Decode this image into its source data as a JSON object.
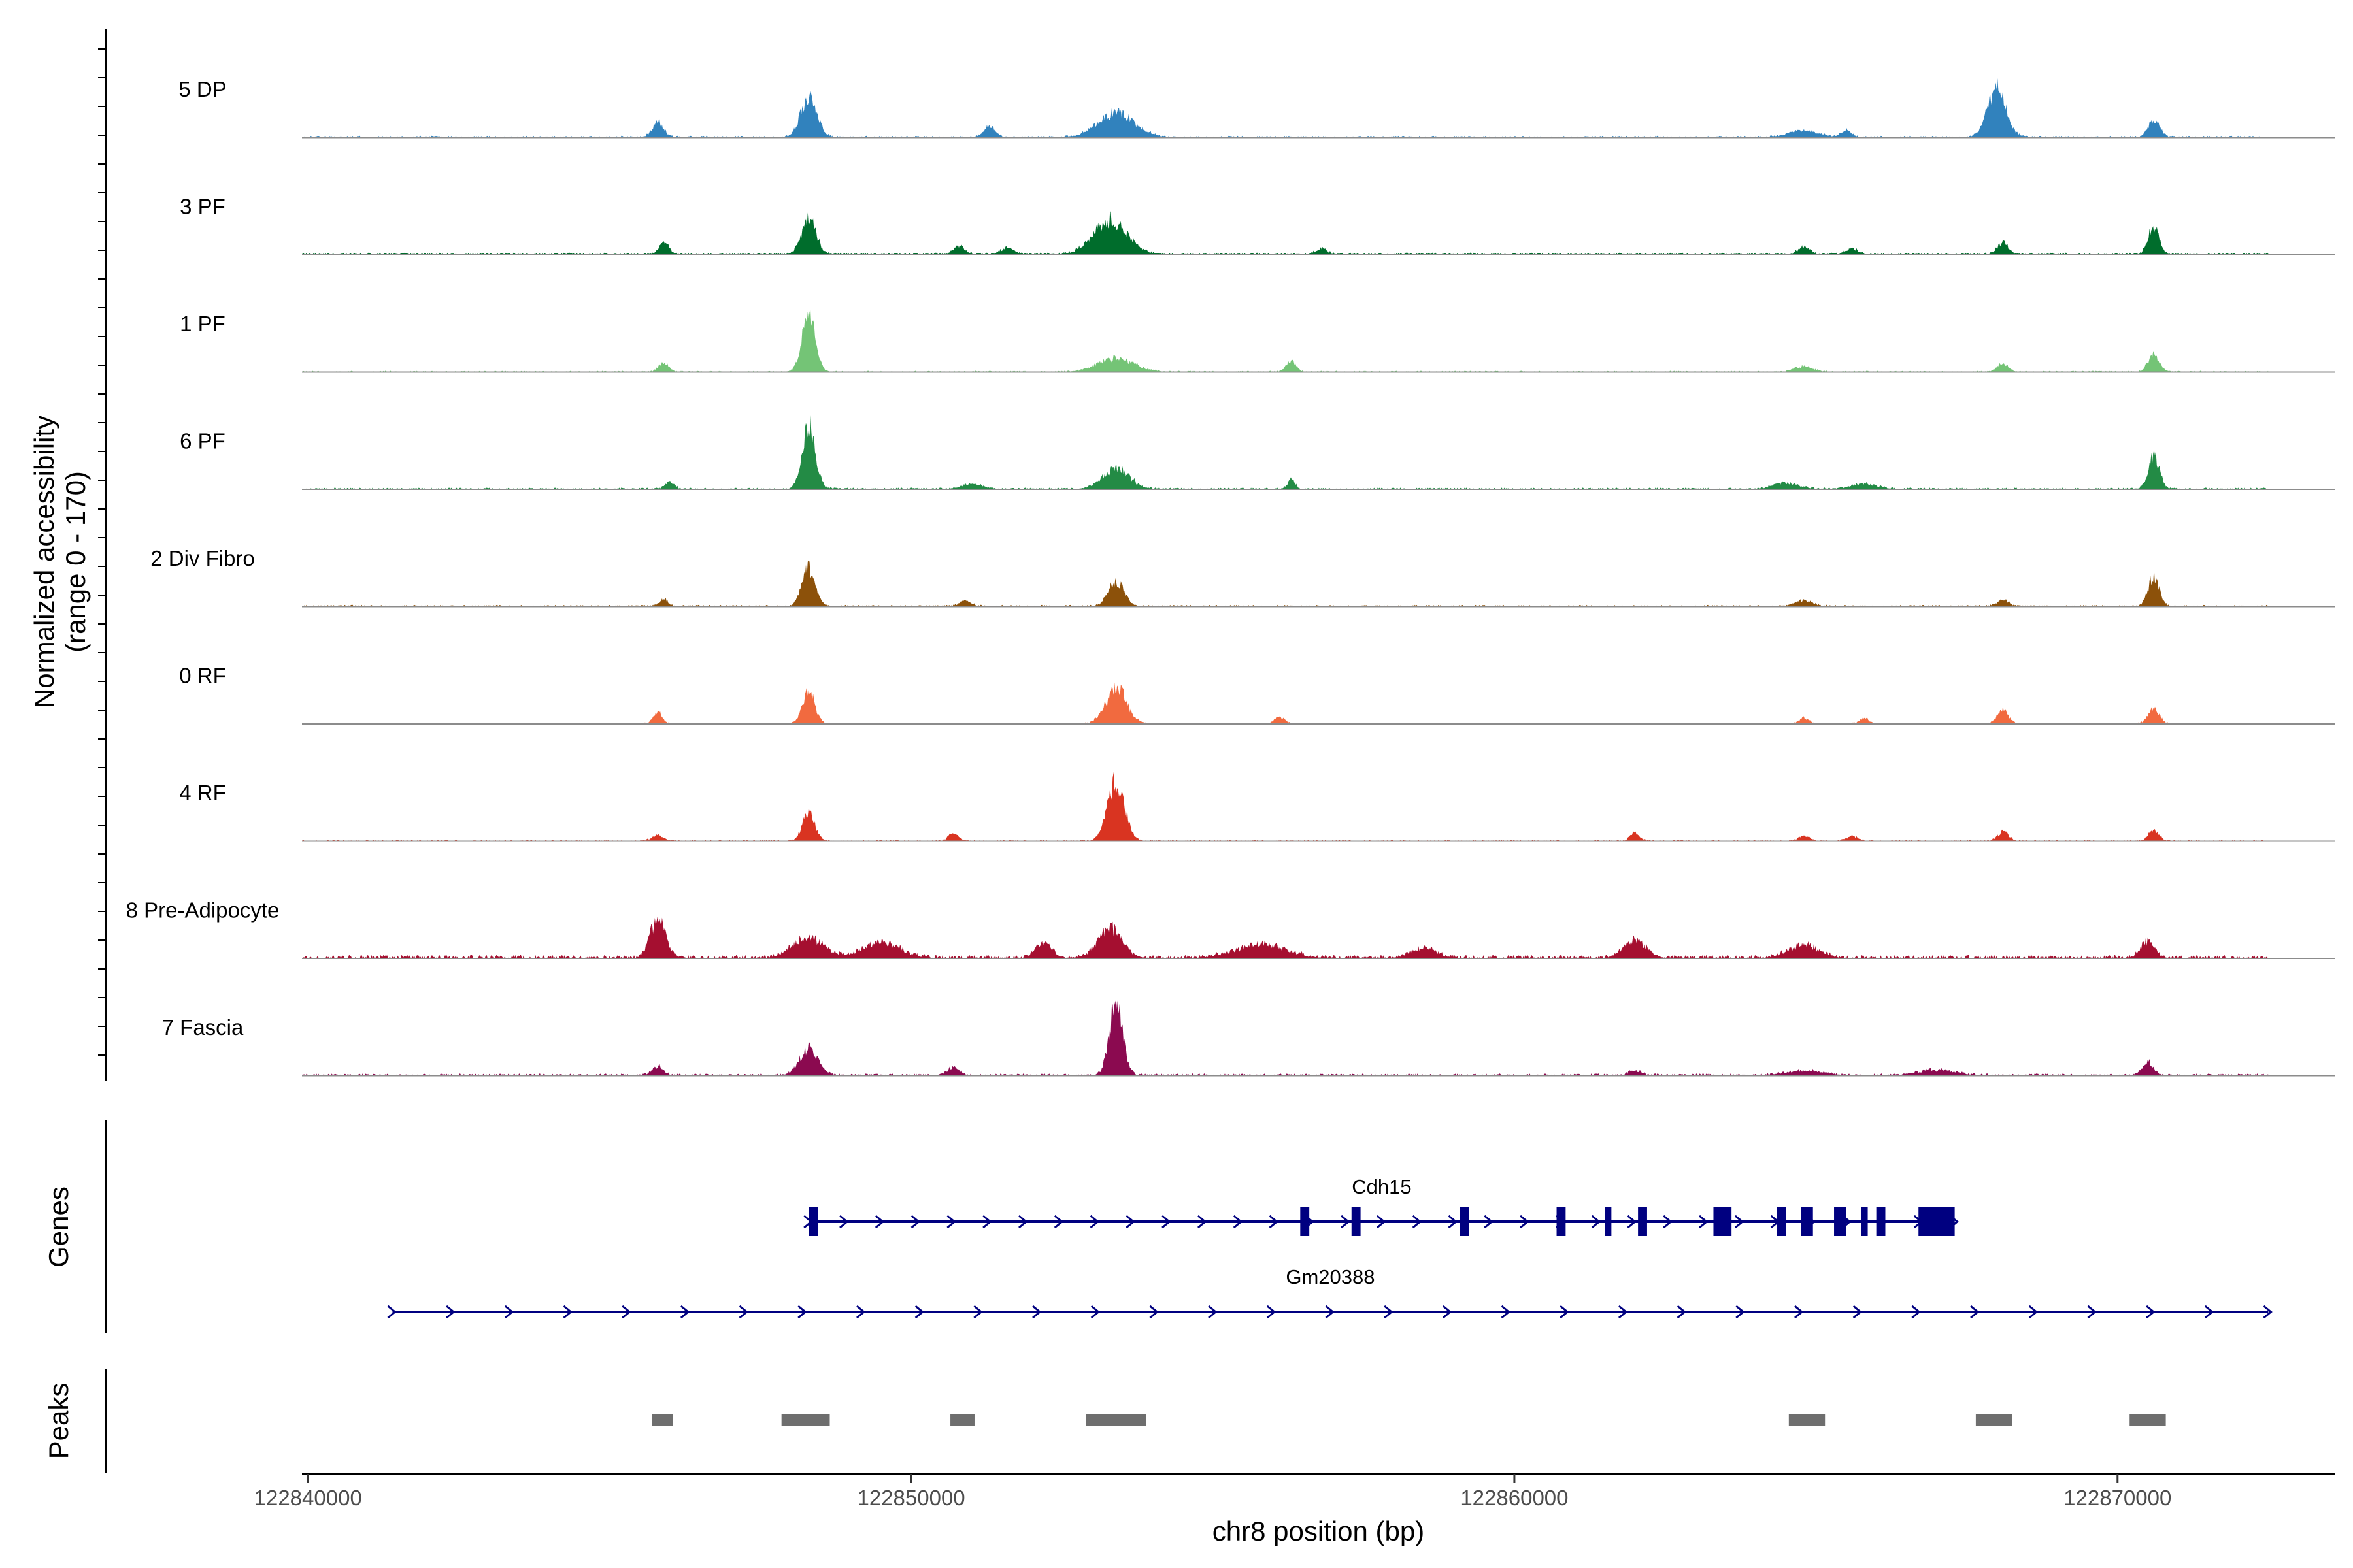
{
  "chart_data": {
    "type": "area",
    "title": "",
    "ylabel_line1": "Normalized accessibility",
    "ylabel_line2": "(range 0 - 170)",
    "ylim": [
      0,
      170
    ],
    "xlabel": "chr8 position (bp)",
    "xlim": [
      122839900,
      122873600
    ],
    "x_ticks": [
      122840000,
      122850000,
      122860000,
      122870000
    ],
    "x_tick_labels": [
      "122840000",
      "122850000",
      "122860000",
      "122870000"
    ],
    "region_start": 122839900,
    "region_end": 122872500,
    "tracks": [
      {
        "name": "5 DP",
        "color": "#3182BD",
        "noise": 4,
        "peaks": [
          [
            122845800,
            35,
            90
          ],
          [
            122848300,
            95,
            130
          ],
          [
            122851300,
            25,
            90
          ],
          [
            122853400,
            55,
            300
          ],
          [
            122864800,
            15,
            250
          ],
          [
            122865500,
            15,
            90
          ],
          [
            122868000,
            110,
            150
          ],
          [
            122870600,
            40,
            90
          ]
        ]
      },
      {
        "name": "3 PF",
        "color": "#006D2C",
        "noise": 5,
        "peaks": [
          [
            122845900,
            25,
            80
          ],
          [
            122848300,
            80,
            120
          ],
          [
            122850800,
            20,
            90
          ],
          [
            122851600,
            15,
            110
          ],
          [
            122853300,
            75,
            280
          ],
          [
            122856800,
            12,
            90
          ],
          [
            122864800,
            18,
            90
          ],
          [
            122865600,
            14,
            90
          ],
          [
            122868100,
            28,
            90
          ],
          [
            122870600,
            60,
            90
          ]
        ]
      },
      {
        "name": "1 PF",
        "color": "#74C476",
        "noise": 3,
        "peaks": [
          [
            122845900,
            20,
            80
          ],
          [
            122848300,
            125,
            110
          ],
          [
            122853400,
            30,
            300
          ],
          [
            122856300,
            25,
            80
          ],
          [
            122864800,
            12,
            150
          ],
          [
            122868100,
            18,
            90
          ],
          [
            122870600,
            38,
            90
          ]
        ]
      },
      {
        "name": "6 PF",
        "color": "#238B45",
        "noise": 4,
        "peaks": [
          [
            122846000,
            18,
            70
          ],
          [
            122848300,
            140,
            110
          ],
          [
            122851000,
            12,
            160
          ],
          [
            122853400,
            45,
            220
          ],
          [
            122856300,
            20,
            60
          ],
          [
            122864500,
            14,
            200
          ],
          [
            122865800,
            12,
            200
          ],
          [
            122870600,
            75,
            90
          ]
        ]
      },
      {
        "name": "2 Div Fibro",
        "color": "#8C510A",
        "noise": 4,
        "peaks": [
          [
            122845900,
            15,
            70
          ],
          [
            122848300,
            85,
            110
          ],
          [
            122850900,
            12,
            90
          ],
          [
            122853400,
            55,
            130
          ],
          [
            122864800,
            12,
            150
          ],
          [
            122868100,
            14,
            90
          ],
          [
            122870600,
            70,
            90
          ]
        ]
      },
      {
        "name": "0 RF",
        "color": "#F16A3F",
        "noise": 3,
        "peaks": [
          [
            122845800,
            28,
            70
          ],
          [
            122848300,
            72,
            100
          ],
          [
            122853400,
            80,
            170
          ],
          [
            122856100,
            15,
            80
          ],
          [
            122864800,
            12,
            80
          ],
          [
            122865800,
            12,
            80
          ],
          [
            122868100,
            30,
            90
          ],
          [
            122870600,
            35,
            90
          ]
        ]
      },
      {
        "name": "4 RF",
        "color": "#D93421",
        "noise": 3,
        "peaks": [
          [
            122845800,
            12,
            100
          ],
          [
            122848300,
            65,
            100
          ],
          [
            122850700,
            18,
            80
          ],
          [
            122853400,
            135,
            140
          ],
          [
            122862000,
            18,
            80
          ],
          [
            122864800,
            10,
            100
          ],
          [
            122865600,
            10,
            100
          ],
          [
            122868100,
            20,
            90
          ],
          [
            122870600,
            22,
            90
          ]
        ]
      },
      {
        "name": "8 Pre-Adipocyte",
        "color": "#A50F30",
        "noise": 8,
        "peaks": [
          [
            122845800,
            90,
            120
          ],
          [
            122848300,
            45,
            250
          ],
          [
            122849500,
            35,
            300
          ],
          [
            122852200,
            35,
            130
          ],
          [
            122853300,
            65,
            200
          ],
          [
            122855800,
            30,
            400
          ],
          [
            122858500,
            20,
            200
          ],
          [
            122862000,
            40,
            180
          ],
          [
            122864800,
            28,
            250
          ],
          [
            122870500,
            38,
            110
          ]
        ]
      },
      {
        "name": "7 Fascia",
        "color": "#8B0A50",
        "noise": 5,
        "peaks": [
          [
            122845800,
            20,
            90
          ],
          [
            122848300,
            60,
            150
          ],
          [
            122850700,
            18,
            90
          ],
          [
            122853400,
            168,
            110
          ],
          [
            122862000,
            10,
            100
          ],
          [
            122864800,
            10,
            300
          ],
          [
            122867000,
            12,
            300
          ],
          [
            122870500,
            30,
            90
          ]
        ]
      }
    ],
    "genes": [
      {
        "name": "Cdh15",
        "start": 122848300,
        "end": 122867300,
        "strand": "+",
        "exons": [
          [
            122848300,
            122848450
          ],
          [
            122856450,
            122856600
          ],
          [
            122857300,
            122857450
          ],
          [
            122859100,
            122859250
          ],
          [
            122860700,
            122860850
          ],
          [
            122861500,
            122861600
          ],
          [
            122862050,
            122862200
          ],
          [
            122863300,
            122863600
          ],
          [
            122864350,
            122864500
          ],
          [
            122864750,
            122864950
          ],
          [
            122865300,
            122865500
          ],
          [
            122865750,
            122865850
          ],
          [
            122866000,
            122866150
          ],
          [
            122866700,
            122867300
          ]
        ]
      },
      {
        "name": "Gm20388",
        "start": 122841400,
        "end": 122872500,
        "strand": "+",
        "exons": []
      }
    ],
    "peaks": [
      [
        122845700,
        122846050
      ],
      [
        122847850,
        122848650
      ],
      [
        122850650,
        122851050
      ],
      [
        122852900,
        122853900
      ],
      [
        122864550,
        122865150
      ],
      [
        122867650,
        122868250
      ],
      [
        122870200,
        122870800
      ]
    ],
    "colors": {
      "gene": "#000080",
      "peak": "#6E6E6E",
      "baseline": "#8C8C8C"
    }
  },
  "panels": {
    "genes_label": "Genes",
    "peaks_label": "Peaks"
  }
}
